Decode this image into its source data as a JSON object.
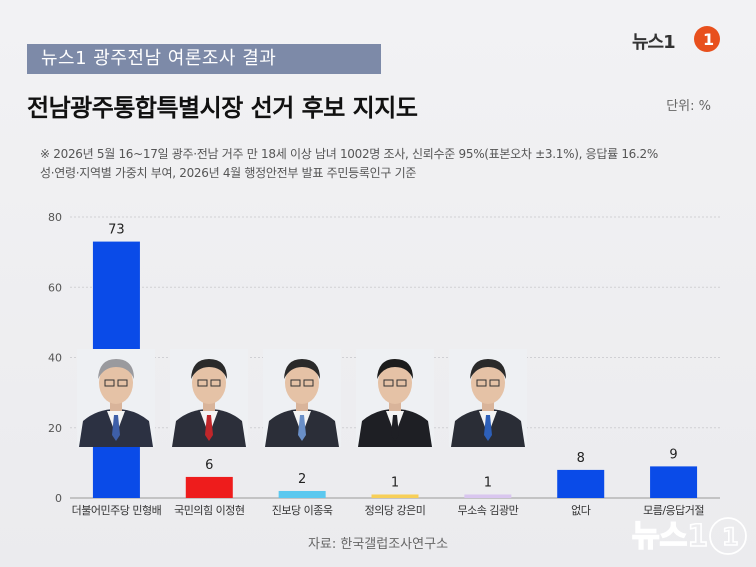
{
  "header": {
    "tag": "뉴스1 광주전남 여론조사 결과",
    "logo": "뉴스1",
    "title": "전남광주통합특별시장 선거 후보 지지도",
    "unit": "단위: %"
  },
  "note": {
    "line1": "※ 2026년 5월 16~17일 광주·전남 거주 만 18세 이상 남녀 1002명 조사, 신뢰수준 95%(표본오차 ±3.1%), 응답률 16.2%",
    "line2": "성·연령·지역별 가중치 부여, 2026년 4월 행정안전부 발표 주민등록인구 기준"
  },
  "source": "자료: 한국갤럽조사연구소",
  "watermark": "뉴스1",
  "colors": {
    "blue": "#0a4be8",
    "red": "#ee1c1c",
    "lightblue": "#5bc8ef",
    "yellow": "#f7cf58",
    "lavender": "#d9c6ef"
  },
  "chart_data": {
    "type": "bar",
    "categories": [
      "더불어민주당 민형배",
      "국민의힘 이정현",
      "진보당 이종욱",
      "정의당 강은미",
      "무소속 김광만",
      "없다",
      "모름/응답거절"
    ],
    "values": [
      73,
      6,
      2,
      1,
      1,
      8,
      9
    ],
    "bar_colors": [
      "#0a4be8",
      "#ee1c1c",
      "#5bc8ef",
      "#f7cf58",
      "#d9c6ef",
      "#0a4be8",
      "#0a4be8"
    ],
    "title": "전남광주통합특별시장 선거 후보 지지도",
    "xlabel": "",
    "ylabel": "",
    "ylim": [
      0,
      80
    ],
    "yticks": [
      0,
      20,
      40,
      60,
      80
    ],
    "grid": true
  },
  "photos": [
    {
      "name": "photo-min-hyeongbae",
      "suit": "#2c3142",
      "tie": "#3e5fa8",
      "bg": "#eef0f3"
    },
    {
      "name": "photo-lee-junghyun",
      "suit": "#2c2f3a",
      "tie": "#c0262a",
      "bg": "#eef0f3"
    },
    {
      "name": "photo-lee-jongwook",
      "suit": "#2b2e38",
      "tie": "#6a8fc7",
      "bg": "#eef0f3"
    },
    {
      "name": "photo-kang-eunmi",
      "suit": "#1e1f24",
      "tie": "#1e1f24",
      "bg": "#eef0f3"
    },
    {
      "name": "photo-kim-gwangman",
      "suit": "#2a2d36",
      "tie": "#2d5fb8",
      "bg": "#eef0f3"
    }
  ]
}
